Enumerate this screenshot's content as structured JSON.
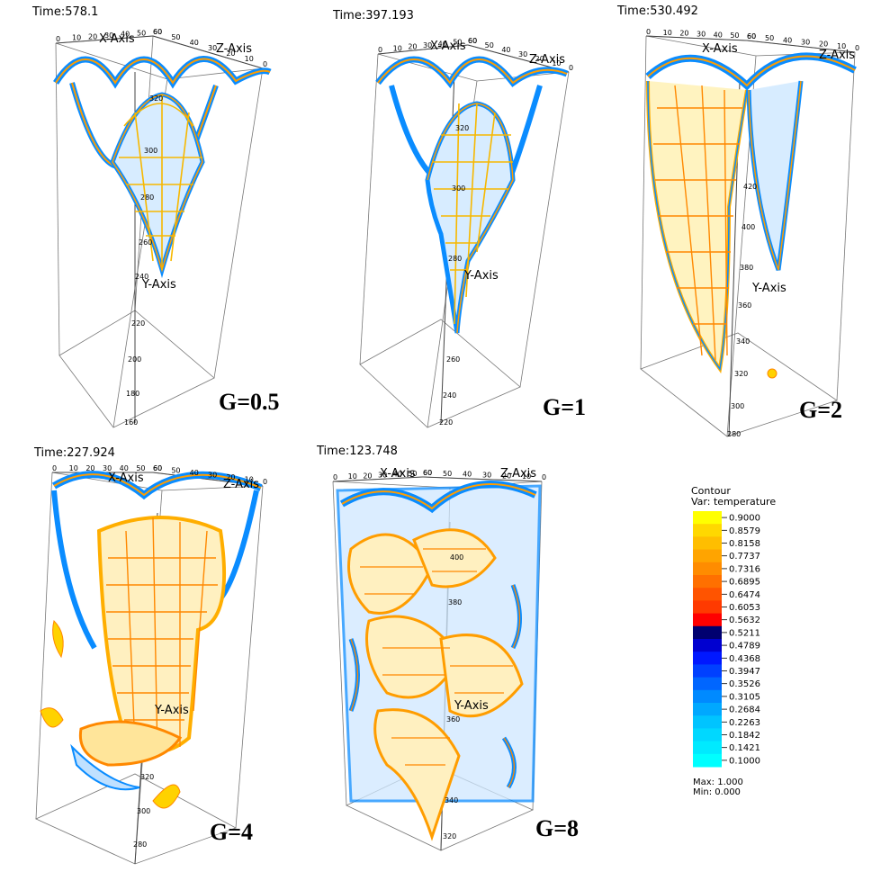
{
  "panels": [
    {
      "time": "Time:578.1",
      "g": "G=0.5",
      "x_axis": "X-Axis",
      "z_axis": "Z-Axis",
      "y_axis": "Y-Axis",
      "y_ticks": [
        "320",
        "300",
        "280",
        "260",
        "240",
        "220",
        "200",
        "180",
        "160"
      ]
    },
    {
      "time": "Time:397.193",
      "g": "G=1",
      "x_axis": "X-Axis",
      "z_axis": "Z-Axis",
      "y_axis": "Y-Axis",
      "y_ticks": [
        "320",
        "300",
        "280",
        "260",
        "240",
        "220"
      ]
    },
    {
      "time": "Time:530.492",
      "g": "G=2",
      "x_axis": "X-Axis",
      "z_axis": "Z-Axis",
      "y_axis": "Y-Axis",
      "y_ticks": [
        "420",
        "400",
        "380",
        "360",
        "340",
        "320",
        "300",
        "280"
      ]
    },
    {
      "time": "Time:227.924",
      "g": "G=4",
      "x_axis": "X-Axis",
      "z_axis": "Z-Axis",
      "y_axis": "Y-Axis",
      "y_ticks": [
        "320",
        "300",
        "280"
      ]
    },
    {
      "time": "Time:123.748",
      "g": "G=8",
      "x_axis": "X-Axis",
      "z_axis": "Z-Axis",
      "y_axis": "Y-Axis",
      "y_ticks": [
        "400",
        "380",
        "360",
        "340",
        "320"
      ]
    }
  ],
  "axis_ticks": [
    "0",
    "10",
    "20",
    "30",
    "40",
    "50",
    "60"
  ],
  "legend": {
    "title": "Contour",
    "variable": "Var: temperature",
    "levels": [
      {
        "value": "0.9000",
        "color": "#ffff00"
      },
      {
        "value": "0.8579",
        "color": "#ffd800"
      },
      {
        "value": "0.8158",
        "color": "#ffbe00"
      },
      {
        "value": "0.7737",
        "color": "#ffa400"
      },
      {
        "value": "0.7316",
        "color": "#ff8c00"
      },
      {
        "value": "0.6895",
        "color": "#ff7000"
      },
      {
        "value": "0.6474",
        "color": "#ff5400"
      },
      {
        "value": "0.6053",
        "color": "#ff3a00"
      },
      {
        "value": "0.5632",
        "color": "#ff0000"
      },
      {
        "value": "0.5211",
        "color": "#000070"
      },
      {
        "value": "0.4789",
        "color": "#0000d0"
      },
      {
        "value": "0.4368",
        "color": "#0018ff"
      },
      {
        "value": "0.3947",
        "color": "#0040ff"
      },
      {
        "value": "0.3526",
        "color": "#0066ff"
      },
      {
        "value": "0.3105",
        "color": "#008aff"
      },
      {
        "value": "0.2684",
        "color": "#00a8ff"
      },
      {
        "value": "0.2263",
        "color": "#00c4ff"
      },
      {
        "value": "0.1842",
        "color": "#00d8ff"
      },
      {
        "value": "0.1421",
        "color": "#00eaff"
      },
      {
        "value": "0.1000",
        "color": "#00ffff"
      }
    ],
    "max": "Max:  1.000",
    "min": "Min:  0.000"
  }
}
